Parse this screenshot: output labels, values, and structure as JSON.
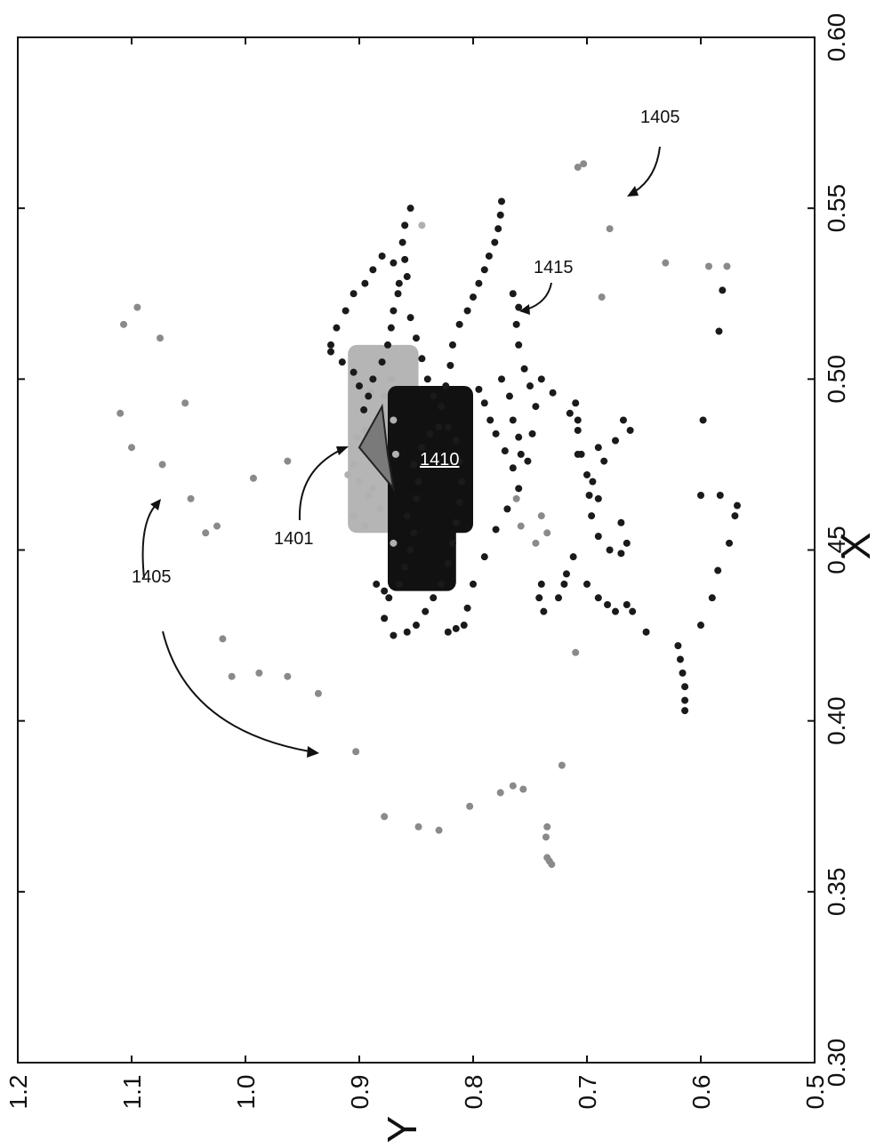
{
  "chart_data": {
    "type": "scatter",
    "xlabel": "X",
    "ylabel": "Y",
    "xlim": [
      0.3,
      0.6
    ],
    "ylim": [
      0.5,
      1.2
    ],
    "x_ticks": [
      "0.30",
      "0.35",
      "0.40",
      "0.45",
      "0.50",
      "0.55",
      "0.60"
    ],
    "y_ticks": [
      "0.5",
      "0.6",
      "0.7",
      "0.8",
      "0.9",
      "1.0",
      "1.1",
      "1.2"
    ],
    "grid": false,
    "orientation": "rotated 90 degrees counter-clockwise",
    "annotations": [
      {
        "label": "1405",
        "x": 0.578,
        "y": 0.64
      },
      {
        "label": "1415",
        "x": 0.534,
        "y": 0.745
      },
      {
        "label": "1410",
        "x": 0.477,
        "y": 0.825,
        "underlined": true
      },
      {
        "label": "1401",
        "x": 0.455,
        "y": 0.925
      },
      {
        "label": "1405",
        "x": 0.441,
        "y": 1.06
      }
    ],
    "series": [
      {
        "color": "#8a8a8a",
        "points": [
          [
            0.36,
            0.735
          ],
          [
            0.359,
            0.733
          ],
          [
            0.358,
            0.731
          ],
          [
            0.366,
            0.736
          ],
          [
            0.369,
            0.735
          ],
          [
            0.368,
            0.83
          ],
          [
            0.369,
            0.848
          ],
          [
            0.372,
            0.878
          ],
          [
            0.375,
            0.803
          ],
          [
            0.379,
            0.776
          ],
          [
            0.38,
            0.756
          ],
          [
            0.381,
            0.765
          ],
          [
            0.387,
            0.722
          ],
          [
            0.391,
            0.903
          ],
          [
            0.408,
            0.936
          ],
          [
            0.413,
            0.963
          ],
          [
            0.414,
            0.988
          ],
          [
            0.413,
            1.012
          ],
          [
            0.424,
            1.02
          ],
          [
            0.42,
            0.71
          ],
          [
            0.457,
            1.025
          ],
          [
            0.455,
            1.035
          ],
          [
            0.465,
            1.048
          ],
          [
            0.475,
            1.073
          ],
          [
            0.48,
            1.1
          ],
          [
            0.49,
            1.11
          ],
          [
            0.493,
            1.053
          ],
          [
            0.471,
            0.993
          ],
          [
            0.476,
            0.963
          ],
          [
            0.512,
            1.075
          ],
          [
            0.516,
            1.107
          ],
          [
            0.521,
            1.095
          ],
          [
            0.563,
            0.703
          ],
          [
            0.562,
            0.708
          ],
          [
            0.544,
            0.68
          ],
          [
            0.524,
            0.687
          ],
          [
            0.534,
            0.631
          ],
          [
            0.533,
            0.593
          ],
          [
            0.533,
            0.577
          ],
          [
            0.465,
            0.762
          ],
          [
            0.457,
            0.758
          ],
          [
            0.452,
            0.745
          ],
          [
            0.46,
            0.74
          ],
          [
            0.455,
            0.735
          ]
        ]
      },
      {
        "color": "#b0b0b0",
        "points": [
          [
            0.47,
            0.9
          ],
          [
            0.475,
            0.905
          ],
          [
            0.48,
            0.898
          ],
          [
            0.485,
            0.895
          ],
          [
            0.49,
            0.88
          ],
          [
            0.495,
            0.878
          ],
          [
            0.468,
            0.888
          ],
          [
            0.462,
            0.882
          ],
          [
            0.466,
            0.892
          ],
          [
            0.472,
            0.91
          ],
          [
            0.488,
            0.87
          ],
          [
            0.5,
            0.872
          ],
          [
            0.505,
            0.88
          ],
          [
            0.545,
            0.845
          ],
          [
            0.46,
            0.905
          ],
          [
            0.452,
            0.87
          ],
          [
            0.478,
            0.868
          ],
          [
            0.483,
            0.902
          ],
          [
            0.496,
            0.89
          ],
          [
            0.457,
            0.895
          ]
        ]
      },
      {
        "color": "#1a1a1a",
        "points": [
          [
            0.44,
            0.885
          ],
          [
            0.438,
            0.878
          ],
          [
            0.436,
            0.874
          ],
          [
            0.44,
            0.865
          ],
          [
            0.445,
            0.86
          ],
          [
            0.45,
            0.855
          ],
          [
            0.455,
            0.852
          ],
          [
            0.46,
            0.858
          ],
          [
            0.465,
            0.85
          ],
          [
            0.47,
            0.848
          ],
          [
            0.475,
            0.852
          ],
          [
            0.48,
            0.845
          ],
          [
            0.484,
            0.838
          ],
          [
            0.486,
            0.83
          ],
          [
            0.486,
            0.822
          ],
          [
            0.482,
            0.815
          ],
          [
            0.476,
            0.812
          ],
          [
            0.47,
            0.81
          ],
          [
            0.464,
            0.812
          ],
          [
            0.458,
            0.815
          ],
          [
            0.452,
            0.818
          ],
          [
            0.446,
            0.822
          ],
          [
            0.44,
            0.828
          ],
          [
            0.436,
            0.835
          ],
          [
            0.432,
            0.842
          ],
          [
            0.428,
            0.85
          ],
          [
            0.426,
            0.858
          ],
          [
            0.425,
            0.87
          ],
          [
            0.43,
            0.878
          ],
          [
            0.426,
            0.822
          ],
          [
            0.427,
            0.815
          ],
          [
            0.428,
            0.808
          ],
          [
            0.433,
            0.805
          ],
          [
            0.44,
            0.8
          ],
          [
            0.448,
            0.79
          ],
          [
            0.456,
            0.78
          ],
          [
            0.462,
            0.77
          ],
          [
            0.468,
            0.76
          ],
          [
            0.476,
            0.752
          ],
          [
            0.484,
            0.748
          ],
          [
            0.492,
            0.745
          ],
          [
            0.498,
            0.75
          ],
          [
            0.503,
            0.755
          ],
          [
            0.51,
            0.76
          ],
          [
            0.516,
            0.762
          ],
          [
            0.521,
            0.76
          ],
          [
            0.525,
            0.765
          ],
          [
            0.5,
            0.74
          ],
          [
            0.496,
            0.73
          ],
          [
            0.49,
            0.715
          ],
          [
            0.485,
            0.708
          ],
          [
            0.478,
            0.705
          ],
          [
            0.472,
            0.7
          ],
          [
            0.466,
            0.698
          ],
          [
            0.46,
            0.696
          ],
          [
            0.454,
            0.69
          ],
          [
            0.45,
            0.68
          ],
          [
            0.449,
            0.67
          ],
          [
            0.452,
            0.665
          ],
          [
            0.458,
            0.67
          ],
          [
            0.465,
            0.69
          ],
          [
            0.47,
            0.695
          ],
          [
            0.478,
            0.708
          ],
          [
            0.488,
            0.708
          ],
          [
            0.493,
            0.71
          ],
          [
            0.48,
            0.69
          ],
          [
            0.476,
            0.685
          ],
          [
            0.482,
            0.675
          ],
          [
            0.488,
            0.668
          ],
          [
            0.485,
            0.662
          ],
          [
            0.44,
            0.74
          ],
          [
            0.436,
            0.742
          ],
          [
            0.432,
            0.738
          ],
          [
            0.436,
            0.725
          ],
          [
            0.44,
            0.72
          ],
          [
            0.443,
            0.718
          ],
          [
            0.448,
            0.712
          ],
          [
            0.44,
            0.7
          ],
          [
            0.436,
            0.69
          ],
          [
            0.434,
            0.682
          ],
          [
            0.432,
            0.675
          ],
          [
            0.434,
            0.665
          ],
          [
            0.432,
            0.66
          ],
          [
            0.426,
            0.648
          ],
          [
            0.422,
            0.62
          ],
          [
            0.418,
            0.618
          ],
          [
            0.414,
            0.616
          ],
          [
            0.41,
            0.614
          ],
          [
            0.406,
            0.614
          ],
          [
            0.403,
            0.614
          ],
          [
            0.428,
            0.6
          ],
          [
            0.436,
            0.59
          ],
          [
            0.444,
            0.585
          ],
          [
            0.452,
            0.575
          ],
          [
            0.46,
            0.57
          ],
          [
            0.463,
            0.568
          ],
          [
            0.466,
            0.583
          ],
          [
            0.466,
            0.6
          ],
          [
            0.488,
            0.598
          ],
          [
            0.514,
            0.584
          ],
          [
            0.526,
            0.581
          ],
          [
            0.55,
            0.855
          ],
          [
            0.545,
            0.86
          ],
          [
            0.54,
            0.862
          ],
          [
            0.535,
            0.86
          ],
          [
            0.53,
            0.858
          ],
          [
            0.525,
            0.866
          ],
          [
            0.52,
            0.87
          ],
          [
            0.515,
            0.872
          ],
          [
            0.51,
            0.875
          ],
          [
            0.505,
            0.88
          ],
          [
            0.5,
            0.888
          ],
          [
            0.495,
            0.892
          ],
          [
            0.491,
            0.896
          ],
          [
            0.508,
            0.925
          ],
          [
            0.505,
            0.915
          ],
          [
            0.502,
            0.905
          ],
          [
            0.498,
            0.9
          ],
          [
            0.51,
            0.925
          ],
          [
            0.515,
            0.92
          ],
          [
            0.52,
            0.912
          ],
          [
            0.525,
            0.905
          ],
          [
            0.528,
            0.895
          ],
          [
            0.532,
            0.888
          ],
          [
            0.536,
            0.88
          ],
          [
            0.534,
            0.87
          ],
          [
            0.528,
            0.865
          ],
          [
            0.518,
            0.855
          ],
          [
            0.512,
            0.85
          ],
          [
            0.506,
            0.845
          ],
          [
            0.5,
            0.84
          ],
          [
            0.495,
            0.835
          ],
          [
            0.492,
            0.828
          ],
          [
            0.498,
            0.824
          ],
          [
            0.504,
            0.82
          ],
          [
            0.51,
            0.818
          ],
          [
            0.516,
            0.812
          ],
          [
            0.52,
            0.805
          ],
          [
            0.524,
            0.8
          ],
          [
            0.528,
            0.795
          ],
          [
            0.532,
            0.79
          ],
          [
            0.536,
            0.786
          ],
          [
            0.54,
            0.781
          ],
          [
            0.544,
            0.778
          ],
          [
            0.548,
            0.776
          ],
          [
            0.552,
            0.775
          ],
          [
            0.5,
            0.775
          ],
          [
            0.495,
            0.768
          ],
          [
            0.488,
            0.765
          ],
          [
            0.483,
            0.76
          ],
          [
            0.478,
            0.758
          ],
          [
            0.474,
            0.765
          ],
          [
            0.479,
            0.772
          ],
          [
            0.484,
            0.78
          ],
          [
            0.488,
            0.785
          ],
          [
            0.493,
            0.79
          ],
          [
            0.497,
            0.795
          ]
        ]
      }
    ],
    "dense_regions": [
      {
        "color": "#b5b5b5",
        "x_range": [
          0.455,
          0.51
        ],
        "y_range": [
          0.848,
          0.91
        ]
      },
      {
        "color": "#111111",
        "x_range": [
          0.455,
          0.498
        ],
        "y_range": [
          0.8,
          0.875
        ]
      },
      {
        "color": "#111111",
        "x_range": [
          0.438,
          0.468
        ],
        "y_range": [
          0.815,
          0.875
        ]
      }
    ],
    "highlight_polygon": {
      "color": "#7a7a7a",
      "points": [
        [
          0.48,
          0.9
        ],
        [
          0.492,
          0.88
        ],
        [
          0.478,
          0.875
        ],
        [
          0.468,
          0.87
        ],
        [
          0.474,
          0.885
        ]
      ]
    }
  }
}
